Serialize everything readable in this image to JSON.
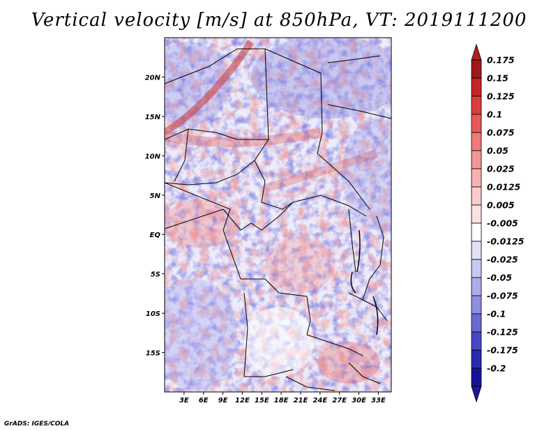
{
  "title": "Vertical velocity [m/s] at 850hPa, VT: 2019111200",
  "footer": "GrADS: IGES/COLA",
  "map": {
    "variable": "Vertical velocity",
    "units": "m/s",
    "level": "850hPa",
    "valid_time": "2019111200",
    "lon_range": [
      0,
      35
    ],
    "lat_range": [
      -20,
      25
    ],
    "x_ticks": [
      {
        "value": 3,
        "label": "3E"
      },
      {
        "value": 6,
        "label": "6E"
      },
      {
        "value": 9,
        "label": "9E"
      },
      {
        "value": 12,
        "label": "12E"
      },
      {
        "value": 15,
        "label": "15E"
      },
      {
        "value": 18,
        "label": "18E"
      },
      {
        "value": 21,
        "label": "21E"
      },
      {
        "value": 24,
        "label": "24E"
      },
      {
        "value": 27,
        "label": "27E"
      },
      {
        "value": 30,
        "label": "30E"
      },
      {
        "value": 33,
        "label": "33E"
      }
    ],
    "y_ticks": [
      {
        "value": 20,
        "label": "20N"
      },
      {
        "value": 15,
        "label": "15N"
      },
      {
        "value": 10,
        "label": "10N"
      },
      {
        "value": 5,
        "label": "5N"
      },
      {
        "value": 0,
        "label": "EQ"
      },
      {
        "value": -5,
        "label": "5S"
      },
      {
        "value": -10,
        "label": "10S"
      },
      {
        "value": -15,
        "label": "15S"
      }
    ]
  },
  "colorbar": {
    "levels": [
      {
        "label": "0.175",
        "color": "#a01818"
      },
      {
        "label": "0.15",
        "color": "#c22828"
      },
      {
        "label": "0.125",
        "color": "#d84040"
      },
      {
        "label": "0.1",
        "color": "#e85a5a"
      },
      {
        "label": "0.075",
        "color": "#ee7a7a"
      },
      {
        "label": "0.05",
        "color": "#f29696"
      },
      {
        "label": "0.025",
        "color": "#f6b2b2"
      },
      {
        "label": "0.0125",
        "color": "#f9cccc"
      },
      {
        "label": "0.005",
        "color": "#fbe2e2"
      },
      {
        "label": "-0.005",
        "color": "#ffffff"
      },
      {
        "label": "-0.0125",
        "color": "#e0e0f8"
      },
      {
        "label": "-0.025",
        "color": "#c8c8f2"
      },
      {
        "label": "-0.05",
        "color": "#acacec"
      },
      {
        "label": "-0.075",
        "color": "#8e8ee2"
      },
      {
        "label": "-0.1",
        "color": "#6a6ad4"
      },
      {
        "label": "-0.125",
        "color": "#4848c6"
      },
      {
        "label": "-0.175",
        "color": "#2a2ab0"
      },
      {
        "label": "-0.2",
        "color": "#141498"
      }
    ],
    "top_color": "#b02020",
    "bottom_color": "#1a1a90"
  }
}
